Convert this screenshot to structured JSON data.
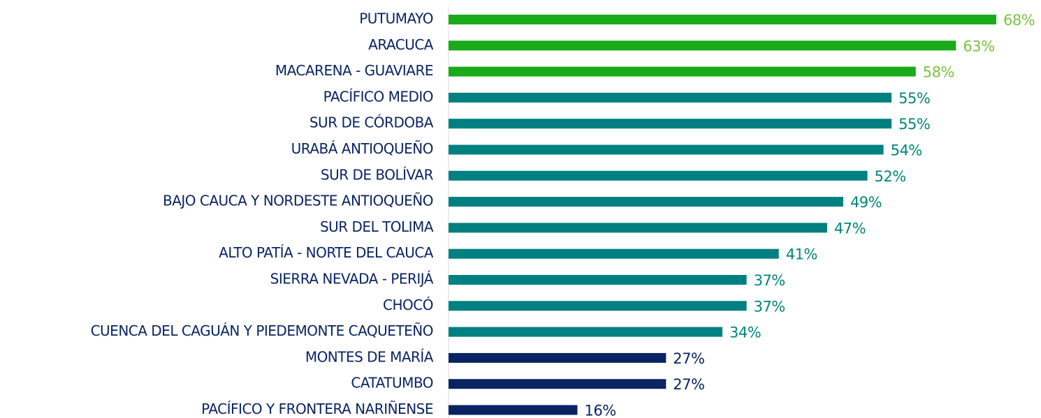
{
  "chart_data": {
    "type": "barh",
    "categories": [
      "PUTUMAYO",
      "ARACUCA",
      "MACARENA - GUAVIARE",
      "PACÍFICO MEDIO",
      "SUR DE CÓRDOBA",
      "URABÁ ANTIOQUEÑO",
      "SUR DE BOLÍVAR",
      "BAJO CAUCA Y NORDESTE ANTIOQUEÑO",
      "SUR DEL TOLIMA",
      "ALTO PATÍA - NORTE DEL CAUCA",
      "SIERRA NEVADA - PERIJÁ",
      "CHOCÓ",
      "CUENCA DEL CAGUÁN Y PIEDEMONTE CAQUETEÑO",
      "MONTES DE MARÍA",
      "CATATUMBO",
      "PACÍFICO Y FRONTERA NARIÑENSE"
    ],
    "values": [
      68,
      63,
      58,
      55,
      55,
      54,
      52,
      49,
      47,
      41,
      37,
      37,
      34,
      27,
      27,
      16
    ],
    "value_labels": [
      "68%",
      "63%",
      "58%",
      "55%",
      "55%",
      "54%",
      "52%",
      "49%",
      "47%",
      "41%",
      "37%",
      "37%",
      "34%",
      "27%",
      "27%",
      "16%"
    ],
    "colors": [
      "#1aaa1a",
      "#1aaa1a",
      "#1aaa1a",
      "#008080",
      "#008080",
      "#008080",
      "#008080",
      "#008080",
      "#008080",
      "#008080",
      "#008080",
      "#008080",
      "#008080",
      "#0a2463",
      "#0a2463",
      "#0a2463"
    ],
    "label_colors": [
      "#7dc242",
      "#7dc242",
      "#7dc242",
      "#00857a",
      "#00857a",
      "#00857a",
      "#00857a",
      "#00857a",
      "#00857a",
      "#00857a",
      "#00857a",
      "#00857a",
      "#00857a",
      "#0a2463",
      "#0a2463",
      "#0a2463"
    ]
  }
}
